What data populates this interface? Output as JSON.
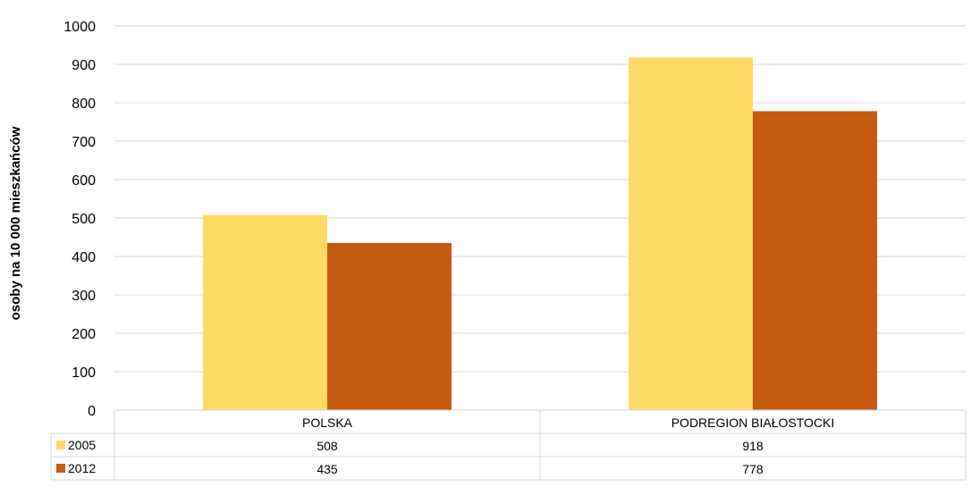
{
  "chart_data": {
    "type": "bar",
    "categories": [
      "POLSKA",
      "PODREGION BIAŁOSTOCKI"
    ],
    "series": [
      {
        "name": "2005",
        "values": [
          508,
          918
        ],
        "labels": [
          "508",
          "918"
        ],
        "color": "#FFD966"
      },
      {
        "name": "2012",
        "values": [
          435,
          778
        ],
        "labels": [
          "435",
          "778"
        ],
        "color": "#C55A11"
      }
    ],
    "ylabel": "osoby na 10 000 mieszkańców",
    "ylim": [
      0,
      1000
    ],
    "yticks": [
      "0",
      "100",
      "200",
      "300",
      "400",
      "500",
      "600",
      "700",
      "800",
      "900",
      "1000"
    ],
    "grid": true,
    "legend": "data-table",
    "colors": {
      "grid": "#D9D9D9"
    }
  }
}
